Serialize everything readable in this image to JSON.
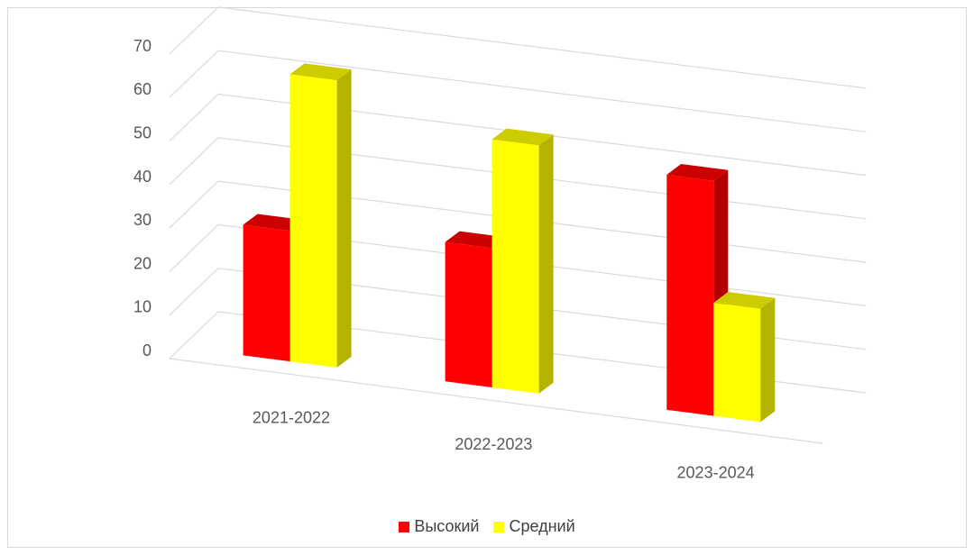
{
  "chart_data": {
    "type": "bar",
    "subtype": "3d-clustered-column",
    "title": "",
    "xlabel": "",
    "ylabel": "",
    "categories": [
      "2021-2022",
      "2022-2023",
      "2023-2024"
    ],
    "series": [
      {
        "name": "Высокий",
        "color": "#ff0000",
        "values": [
          30,
          32,
          54
        ]
      },
      {
        "name": "Средний",
        "color": "#ffff00",
        "values": [
          66,
          57,
          26
        ]
      }
    ],
    "yticks": [
      "0",
      "10",
      "20",
      "30",
      "40",
      "50",
      "60",
      "70"
    ],
    "ylim": [
      0,
      70
    ],
    "grid": true,
    "legend": "bottom"
  }
}
